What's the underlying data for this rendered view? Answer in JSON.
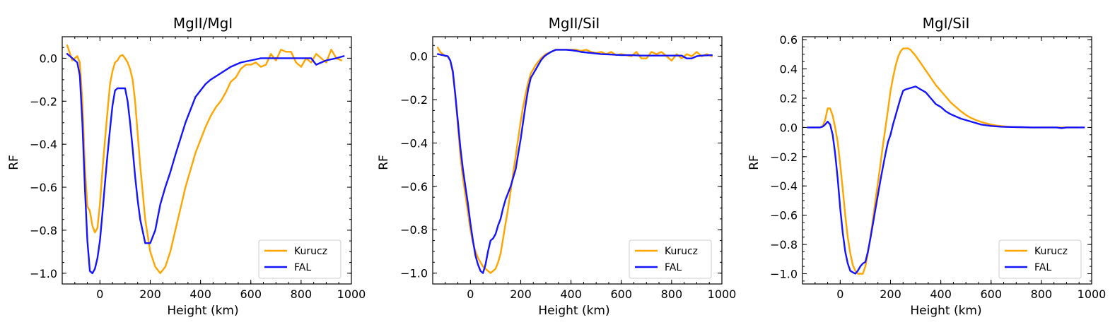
{
  "chart_data": [
    {
      "type": "line",
      "title": "MgII/MgI",
      "xlabel": "Height (km)",
      "ylabel": "RF",
      "xlim": [
        -150,
        1000
      ],
      "ylim": [
        -1.05,
        0.1
      ],
      "xticks": [
        0,
        200,
        400,
        600,
        800,
        1000
      ],
      "yticks": [
        -1.0,
        -0.8,
        -0.6,
        -0.4,
        -0.2,
        0.0
      ],
      "xtick_labels": [
        "0",
        "200",
        "400",
        "600",
        "800",
        "1000"
      ],
      "ytick_labels": [
        "−1.0",
        "−0.8",
        "−0.6",
        "−0.4",
        "−0.2",
        "0.0"
      ],
      "legend_position": "lower-right",
      "series": [
        {
          "name": "Kurucz",
          "color": "#ffa500",
          "x": [
            -130,
            -110,
            -90,
            -80,
            -70,
            -60,
            -50,
            -40,
            -30,
            -20,
            -10,
            0,
            10,
            20,
            30,
            40,
            50,
            60,
            70,
            80,
            90,
            100,
            110,
            120,
            130,
            140,
            150,
            160,
            180,
            200,
            220,
            240,
            260,
            280,
            300,
            320,
            340,
            360,
            380,
            400,
            420,
            440,
            460,
            480,
            500,
            520,
            540,
            560,
            580,
            600,
            620,
            640,
            660,
            680,
            700,
            720,
            740,
            760,
            780,
            800,
            820,
            840,
            860,
            880,
            900,
            920,
            940,
            960
          ],
          "y": [
            0.06,
            -0.01,
            0.01,
            -0.02,
            -0.2,
            -0.5,
            -0.69,
            -0.71,
            -0.78,
            -0.81,
            -0.79,
            -0.68,
            -0.52,
            -0.38,
            -0.25,
            -0.12,
            -0.06,
            -0.02,
            -0.01,
            0.01,
            0.015,
            0.0,
            -0.02,
            -0.05,
            -0.1,
            -0.2,
            -0.35,
            -0.5,
            -0.75,
            -0.9,
            -0.97,
            -1.0,
            -0.97,
            -0.9,
            -0.8,
            -0.7,
            -0.6,
            -0.52,
            -0.44,
            -0.38,
            -0.32,
            -0.27,
            -0.23,
            -0.2,
            -0.16,
            -0.11,
            -0.09,
            -0.05,
            -0.03,
            -0.03,
            -0.02,
            -0.04,
            -0.03,
            0.02,
            -0.01,
            0.04,
            0.03,
            0.03,
            -0.02,
            -0.04,
            0.0,
            -0.02,
            0.02,
            0.0,
            -0.02,
            0.04,
            0.0,
            -0.01
          ]
        },
        {
          "name": "FAL",
          "color": "#1414ff",
          "x": [
            -130,
            -110,
            -100,
            -90,
            -80,
            -70,
            -60,
            -50,
            -40,
            -30,
            -20,
            -10,
            0,
            10,
            20,
            30,
            40,
            50,
            60,
            70,
            80,
            90,
            100,
            110,
            120,
            130,
            140,
            150,
            160,
            180,
            200,
            220,
            240,
            260,
            280,
            300,
            340,
            380,
            420,
            440,
            480,
            520,
            560,
            600,
            640,
            680,
            720,
            760,
            800,
            840,
            860,
            880,
            900,
            940,
            970
          ],
          "y": [
            0.02,
            0.0,
            -0.01,
            -0.02,
            -0.08,
            -0.3,
            -0.6,
            -0.85,
            -0.99,
            -1.0,
            -0.98,
            -0.93,
            -0.85,
            -0.72,
            -0.58,
            -0.45,
            -0.33,
            -0.22,
            -0.15,
            -0.14,
            -0.14,
            -0.14,
            -0.14,
            -0.2,
            -0.3,
            -0.42,
            -0.55,
            -0.66,
            -0.75,
            -0.86,
            -0.86,
            -0.8,
            -0.68,
            -0.6,
            -0.53,
            -0.45,
            -0.3,
            -0.18,
            -0.12,
            -0.1,
            -0.07,
            -0.04,
            -0.02,
            -0.01,
            0.0,
            0.0,
            0.0,
            0.0,
            0.0,
            0.0,
            -0.03,
            -0.02,
            -0.01,
            0.0,
            0.01
          ]
        }
      ]
    },
    {
      "type": "line",
      "title": "MgII/SiI",
      "xlabel": "Height (km)",
      "ylabel": "RF",
      "xlim": [
        -150,
        1000
      ],
      "ylim": [
        -1.05,
        0.09
      ],
      "xticks": [
        0,
        200,
        400,
        600,
        800,
        1000
      ],
      "yticks": [
        -1.0,
        -0.8,
        -0.6,
        -0.4,
        -0.2,
        0.0
      ],
      "xtick_labels": [
        "0",
        "200",
        "400",
        "600",
        "800",
        "1000"
      ],
      "ytick_labels": [
        "−1.0",
        "−0.8",
        "−0.6",
        "−0.4",
        "−0.2",
        "0.0"
      ],
      "legend_position": "lower-right",
      "series": [
        {
          "name": "Kurucz",
          "color": "#ffa500",
          "x": [
            -130,
            -120,
            -110,
            -100,
            -90,
            -80,
            -70,
            -60,
            -50,
            -40,
            -30,
            -20,
            -10,
            0,
            10,
            20,
            30,
            40,
            50,
            60,
            70,
            80,
            90,
            100,
            110,
            120,
            130,
            140,
            150,
            160,
            170,
            180,
            190,
            200,
            210,
            220,
            230,
            240,
            260,
            280,
            300,
            320,
            340,
            360,
            380,
            400,
            420,
            440,
            460,
            480,
            500,
            520,
            540,
            560,
            580,
            600,
            620,
            640,
            660,
            680,
            700,
            720,
            740,
            760,
            780,
            800,
            820,
            840,
            860,
            880,
            900,
            920,
            940,
            960
          ],
          "y": [
            0.04,
            0.02,
            0.01,
            0.0,
            0.0,
            -0.02,
            -0.08,
            -0.18,
            -0.32,
            -0.46,
            -0.56,
            -0.64,
            -0.72,
            -0.8,
            -0.86,
            -0.9,
            -0.93,
            -0.95,
            -0.97,
            -0.98,
            -0.99,
            -1.0,
            -0.99,
            -0.98,
            -0.95,
            -0.91,
            -0.84,
            -0.77,
            -0.7,
            -0.62,
            -0.54,
            -0.46,
            -0.38,
            -0.3,
            -0.23,
            -0.17,
            -0.12,
            -0.08,
            -0.04,
            -0.01,
            0.01,
            0.02,
            0.03,
            0.03,
            0.03,
            0.03,
            0.03,
            0.025,
            0.03,
            0.02,
            0.015,
            0.02,
            0.01,
            0.02,
            0.005,
            0.01,
            0.005,
            0.0,
            0.02,
            -0.01,
            -0.01,
            0.02,
            0.01,
            0.02,
            0.0,
            -0.02,
            0.01,
            -0.01,
            0.01,
            0.0,
            0.02,
            0.0,
            0.01,
            0.0
          ]
        },
        {
          "name": "FAL",
          "color": "#1414ff",
          "x": [
            -130,
            -110,
            -90,
            -80,
            -70,
            -60,
            -50,
            -40,
            -30,
            -20,
            -10,
            0,
            10,
            20,
            30,
            40,
            50,
            60,
            70,
            80,
            90,
            100,
            110,
            120,
            130,
            140,
            150,
            160,
            170,
            180,
            190,
            200,
            210,
            220,
            230,
            240,
            250,
            260,
            270,
            280,
            290,
            300,
            320,
            340,
            360,
            380,
            400,
            420,
            440,
            480,
            520,
            560,
            600,
            640,
            680,
            720,
            760,
            800,
            840,
            860,
            880,
            900,
            920,
            960
          ],
          "y": [
            0.01,
            0.005,
            0.0,
            -0.02,
            -0.07,
            -0.18,
            -0.3,
            -0.42,
            -0.52,
            -0.6,
            -0.68,
            -0.77,
            -0.85,
            -0.92,
            -0.96,
            -0.99,
            -1.0,
            -0.96,
            -0.9,
            -0.85,
            -0.84,
            -0.82,
            -0.78,
            -0.75,
            -0.7,
            -0.66,
            -0.63,
            -0.6,
            -0.56,
            -0.52,
            -0.45,
            -0.38,
            -0.3,
            -0.22,
            -0.15,
            -0.1,
            -0.08,
            -0.06,
            -0.04,
            -0.02,
            -0.005,
            0.005,
            0.02,
            0.03,
            0.03,
            0.03,
            0.028,
            0.025,
            0.02,
            0.015,
            0.01,
            0.008,
            0.005,
            0.005,
            0.003,
            0.003,
            0.003,
            0.003,
            0.003,
            -0.01,
            -0.01,
            0.0,
            0.003,
            0.005
          ]
        }
      ]
    },
    {
      "type": "line",
      "title": "MgI/SiI",
      "xlabel": "Height (km)",
      "ylabel": "RF",
      "xlim": [
        -150,
        1000
      ],
      "ylim": [
        -1.07,
        0.62
      ],
      "xticks": [
        0,
        200,
        400,
        600,
        800,
        1000
      ],
      "yticks": [
        -1.0,
        -0.8,
        -0.6,
        -0.4,
        -0.2,
        0.0,
        0.2,
        0.4,
        0.6
      ],
      "xtick_labels": [
        "0",
        "200",
        "400",
        "600",
        "800",
        "1000"
      ],
      "ytick_labels": [
        "−1.0",
        "−0.8",
        "−0.6",
        "−0.4",
        "−0.2",
        "0.0",
        "0.2",
        "0.4",
        "0.6"
      ],
      "legend_position": "lower-right",
      "series": [
        {
          "name": "Kurucz",
          "color": "#ffa500",
          "x": [
            -120,
            -100,
            -80,
            -70,
            -60,
            -50,
            -40,
            -30,
            -20,
            -10,
            0,
            10,
            20,
            30,
            40,
            50,
            60,
            70,
            80,
            90,
            100,
            110,
            120,
            130,
            140,
            150,
            160,
            170,
            180,
            190,
            200,
            210,
            220,
            230,
            240,
            250,
            260,
            270,
            280,
            290,
            300,
            320,
            340,
            360,
            380,
            400,
            420,
            440,
            460,
            480,
            500,
            520,
            540,
            560,
            580,
            600,
            620,
            640,
            660,
            680,
            700,
            750,
            800,
            850,
            900,
            950
          ],
          "y": [
            0.0,
            0.0,
            0.0,
            0.01,
            0.05,
            0.13,
            0.13,
            0.08,
            0.0,
            -0.1,
            -0.25,
            -0.42,
            -0.6,
            -0.75,
            -0.86,
            -0.94,
            -0.98,
            -1.0,
            -1.0,
            -1.0,
            -0.95,
            -0.86,
            -0.75,
            -0.63,
            -0.5,
            -0.38,
            -0.25,
            -0.12,
            0.0,
            0.12,
            0.25,
            0.34,
            0.42,
            0.48,
            0.52,
            0.54,
            0.54,
            0.54,
            0.53,
            0.51,
            0.49,
            0.44,
            0.39,
            0.34,
            0.29,
            0.25,
            0.21,
            0.17,
            0.14,
            0.11,
            0.085,
            0.065,
            0.05,
            0.038,
            0.028,
            0.02,
            0.013,
            0.009,
            0.006,
            0.004,
            0.002,
            0.0,
            0.0,
            0.0,
            0.0,
            0.0
          ]
        },
        {
          "name": "FAL",
          "color": "#1414ff",
          "x": [
            -130,
            -110,
            -90,
            -80,
            -70,
            -60,
            -50,
            -40,
            -30,
            -20,
            -10,
            0,
            10,
            20,
            30,
            40,
            50,
            60,
            70,
            80,
            90,
            100,
            110,
            120,
            130,
            140,
            150,
            160,
            170,
            180,
            190,
            200,
            210,
            220,
            230,
            240,
            250,
            260,
            280,
            300,
            320,
            340,
            360,
            380,
            400,
            420,
            440,
            480,
            520,
            560,
            600,
            640,
            680,
            720,
            760,
            800,
            840,
            860,
            880,
            900,
            940,
            970
          ],
          "y": [
            0.0,
            0.0,
            0.0,
            0.0,
            0.005,
            0.02,
            0.04,
            0.02,
            -0.05,
            -0.18,
            -0.35,
            -0.55,
            -0.72,
            -0.85,
            -0.93,
            -0.98,
            -0.99,
            -1.0,
            -0.98,
            -0.95,
            -0.93,
            -0.92,
            -0.85,
            -0.76,
            -0.66,
            -0.56,
            -0.46,
            -0.36,
            -0.27,
            -0.18,
            -0.1,
            -0.05,
            0.02,
            0.08,
            0.14,
            0.2,
            0.25,
            0.26,
            0.27,
            0.28,
            0.26,
            0.24,
            0.2,
            0.16,
            0.14,
            0.11,
            0.09,
            0.06,
            0.04,
            0.02,
            0.01,
            0.005,
            0.003,
            0.002,
            0.0,
            0.0,
            0.0,
            0.0,
            -0.005,
            0.0,
            0.0,
            0.0
          ]
        }
      ]
    }
  ]
}
